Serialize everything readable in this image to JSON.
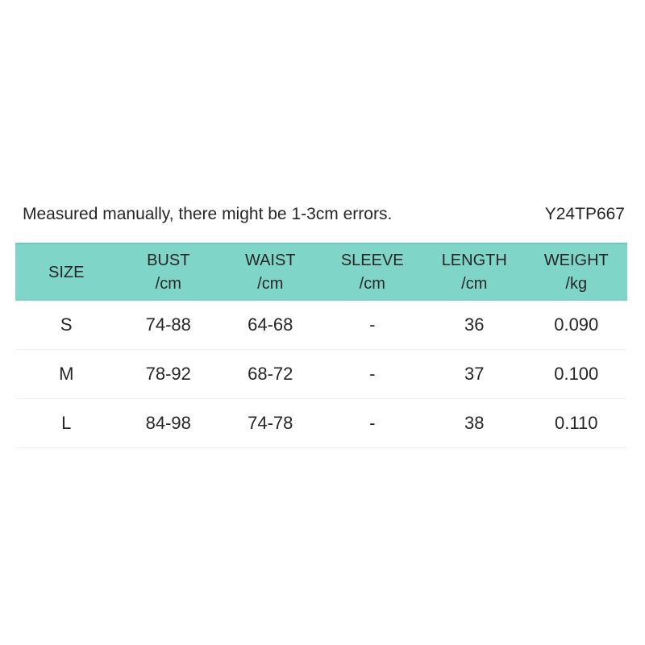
{
  "colors": {
    "header_bg": "#80d5c9",
    "header_border_top": "#68ccbe",
    "row_divider": "#f0f0f0",
    "text": "#262626"
  },
  "chart_data": {
    "type": "table",
    "note": "Measured manually, there might be 1-3cm errors.",
    "product_code": "Y24TP667",
    "header": [
      {
        "label": "SIZE",
        "unit": ""
      },
      {
        "label": "BUST",
        "unit": "/cm"
      },
      {
        "label": "WAIST",
        "unit": "/cm"
      },
      {
        "label": "SLEEVE",
        "unit": "/cm"
      },
      {
        "label": "LENGTH",
        "unit": "/cm"
      },
      {
        "label": "WEIGHT",
        "unit": "/kg"
      }
    ],
    "rows": [
      [
        "S",
        "74-88",
        "64-68",
        "-",
        "36",
        "0.090"
      ],
      [
        "M",
        "78-92",
        "68-72",
        "-",
        "37",
        "0.100"
      ],
      [
        "L",
        "84-98",
        "74-78",
        "-",
        "38",
        "0.110"
      ]
    ]
  }
}
